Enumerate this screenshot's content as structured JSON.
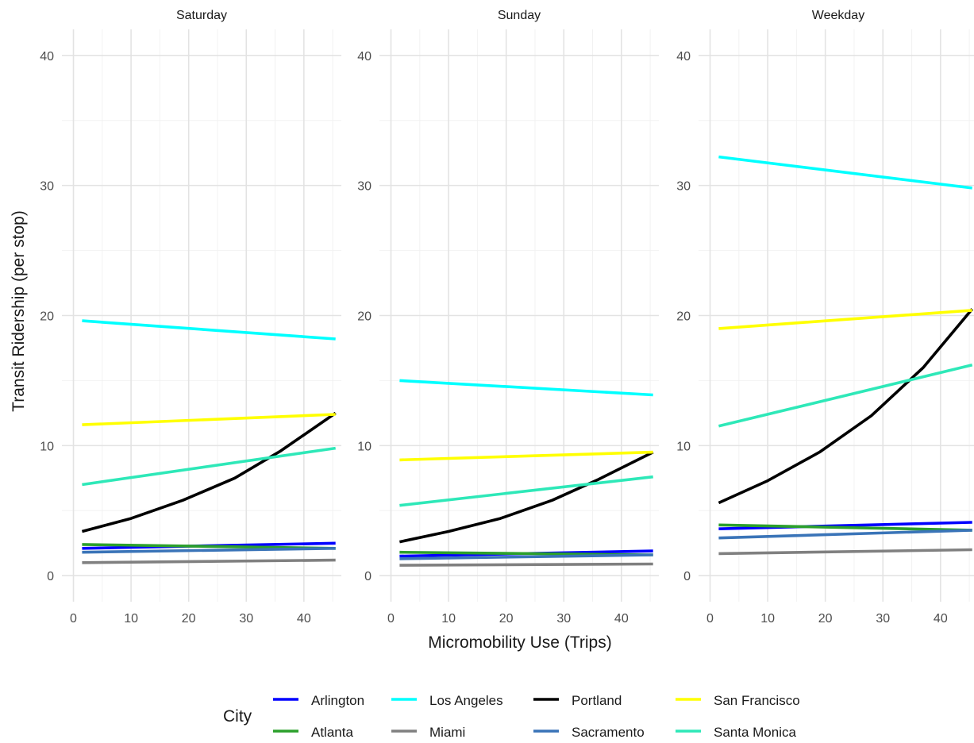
{
  "chart_data": {
    "type": "line",
    "xlabel": "Micromobility Use (Trips)",
    "ylabel": "Transit Ridership (per stop)",
    "xlim": [
      -2,
      46.5
    ],
    "ylim": [
      -2,
      42
    ],
    "x_ticks": [
      0,
      10,
      20,
      30,
      40
    ],
    "y_ticks": [
      0,
      10,
      20,
      30,
      40
    ],
    "grid": true,
    "legend": {
      "title": "City",
      "placement": "bottom",
      "entries": [
        "Arlington",
        "Atlanta",
        "Los Angeles",
        "Miami",
        "Portland",
        "Sacramento",
        "San Francisco",
        "Santa Monica"
      ]
    },
    "colors": {
      "Arlington": "#0000ff",
      "Atlanta": "#2ca02c",
      "Los Angeles": "#00ffff",
      "Miami": "#808080",
      "Portland": "#000000",
      "Sacramento": "#3a74b8",
      "San Francisco": "#ffff00",
      "Santa Monica": "#2ee8b8"
    },
    "panels": [
      {
        "title": "Saturday",
        "series": [
          {
            "name": "Arlington",
            "x": [
              1.5,
              45.5
            ],
            "y": [
              2.1,
              2.5
            ]
          },
          {
            "name": "Atlanta",
            "x": [
              1.5,
              45.5
            ],
            "y": [
              2.4,
              2.1
            ]
          },
          {
            "name": "Los Angeles",
            "x": [
              1.5,
              45.5
            ],
            "y": [
              19.6,
              18.2
            ]
          },
          {
            "name": "Miami",
            "x": [
              1.5,
              45.5
            ],
            "y": [
              1.0,
              1.2
            ]
          },
          {
            "name": "Portland",
            "x": [
              1.5,
              10,
              19,
              28,
              36,
              45.5
            ],
            "y": [
              3.4,
              4.4,
              5.8,
              7.5,
              9.6,
              12.5
            ]
          },
          {
            "name": "Sacramento",
            "x": [
              1.5,
              45.5
            ],
            "y": [
              1.8,
              2.1
            ]
          },
          {
            "name": "San Francisco",
            "x": [
              1.5,
              45.5
            ],
            "y": [
              11.6,
              12.4
            ]
          },
          {
            "name": "Santa Monica",
            "x": [
              1.5,
              45.5
            ],
            "y": [
              7.0,
              9.8
            ]
          }
        ]
      },
      {
        "title": "Sunday",
        "series": [
          {
            "name": "Arlington",
            "x": [
              1.5,
              45.5
            ],
            "y": [
              1.5,
              1.9
            ]
          },
          {
            "name": "Atlanta",
            "x": [
              1.5,
              45.5
            ],
            "y": [
              1.8,
              1.6
            ]
          },
          {
            "name": "Los Angeles",
            "x": [
              1.5,
              45.5
            ],
            "y": [
              15.0,
              13.9
            ]
          },
          {
            "name": "Miami",
            "x": [
              1.5,
              45.5
            ],
            "y": [
              0.8,
              0.9
            ]
          },
          {
            "name": "Portland",
            "x": [
              1.5,
              10,
              19,
              28,
              36,
              45.5
            ],
            "y": [
              2.6,
              3.4,
              4.4,
              5.8,
              7.4,
              9.5
            ]
          },
          {
            "name": "Sacramento",
            "x": [
              1.5,
              45.5
            ],
            "y": [
              1.3,
              1.6
            ]
          },
          {
            "name": "San Francisco",
            "x": [
              1.5,
              45.5
            ],
            "y": [
              8.9,
              9.5
            ]
          },
          {
            "name": "Santa Monica",
            "x": [
              1.5,
              45.5
            ],
            "y": [
              5.4,
              7.6
            ]
          }
        ]
      },
      {
        "title": "Weekday",
        "series": [
          {
            "name": "Arlington",
            "x": [
              1.5,
              45.5
            ],
            "y": [
              3.6,
              4.1
            ]
          },
          {
            "name": "Atlanta",
            "x": [
              1.5,
              45.5
            ],
            "y": [
              3.9,
              3.5
            ]
          },
          {
            "name": "Los Angeles",
            "x": [
              1.5,
              45.5
            ],
            "y": [
              32.2,
              29.8
            ]
          },
          {
            "name": "Miami",
            "x": [
              1.5,
              45.5
            ],
            "y": [
              1.7,
              2.0
            ]
          },
          {
            "name": "Portland",
            "x": [
              1.5,
              10,
              19,
              28,
              37,
              45.5
            ],
            "y": [
              5.6,
              7.3,
              9.5,
              12.3,
              16.0,
              20.5
            ]
          },
          {
            "name": "Sacramento",
            "x": [
              1.5,
              45.5
            ],
            "y": [
              2.9,
              3.5
            ]
          },
          {
            "name": "San Francisco",
            "x": [
              1.5,
              45.5
            ],
            "y": [
              19.0,
              20.4
            ]
          },
          {
            "name": "Santa Monica",
            "x": [
              1.5,
              45.5
            ],
            "y": [
              11.5,
              16.2
            ]
          }
        ]
      }
    ]
  }
}
